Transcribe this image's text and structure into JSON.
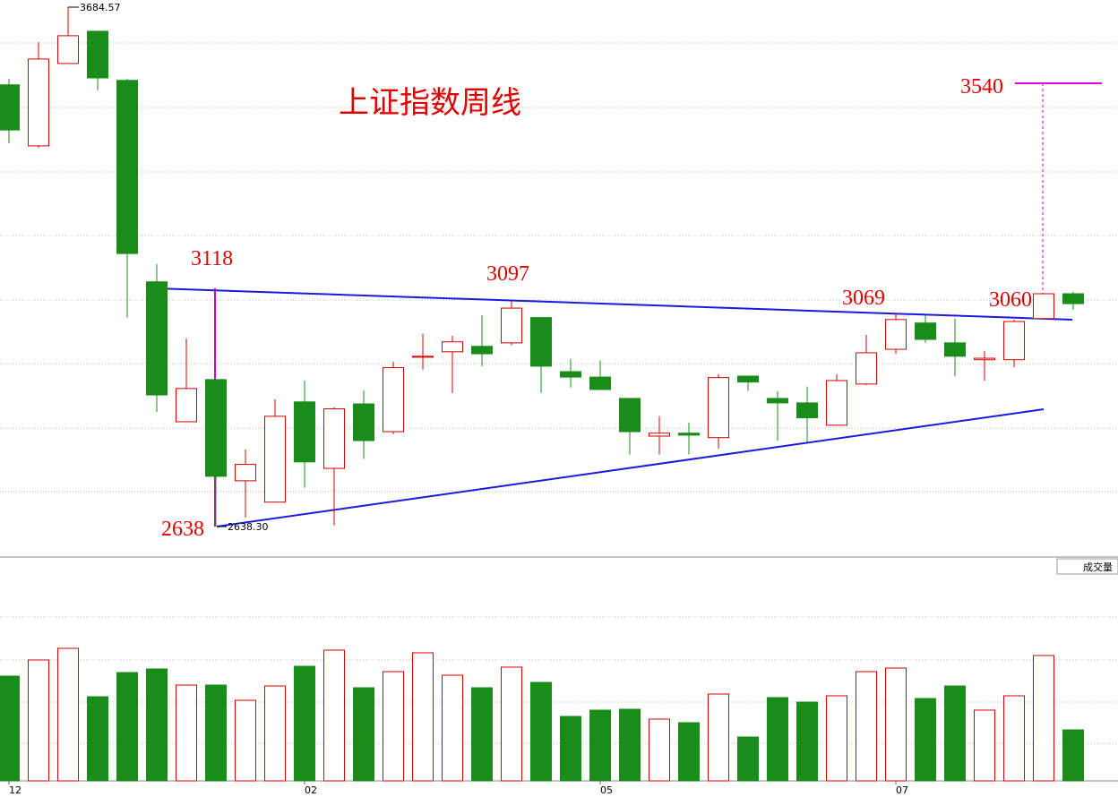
{
  "chart_data": {
    "type": "candlestick",
    "title": "上证指数周线",
    "categories": [
      "12",
      null,
      null,
      null,
      null,
      null,
      null,
      null,
      null,
      null,
      "02",
      null,
      null,
      null,
      null,
      null,
      null,
      null,
      null,
      null,
      "05",
      null,
      null,
      null,
      null,
      null,
      null,
      null,
      null,
      null,
      "07",
      null,
      null,
      null,
      null,
      null,
      null
    ],
    "open": [
      3528,
      3405,
      3571,
      3636,
      3537,
      3131,
      2849,
      2934,
      2730,
      2687,
      2889,
      2755,
      2885,
      2829,
      2979,
      2990,
      3001,
      3008,
      3059,
      2950,
      2939,
      2896,
      2820,
      2826,
      2817,
      2941,
      2896,
      2887,
      2842,
      2925,
      2995,
      3048,
      3008,
      2974,
      2974,
      3057,
      3107
    ],
    "high": [
      3540,
      3614,
      3684.57,
      3636,
      3540,
      3167,
      3017,
      2934,
      2793,
      2894,
      2932,
      2878,
      2912,
      2970,
      3026,
      3022,
      3064,
      3093,
      3059,
      2976,
      2972,
      2896,
      2860,
      2847,
      2945,
      2941,
      2911,
      2920,
      2945,
      3024,
      3068,
      3064,
      3057,
      2992,
      3055,
      3107,
      3111
    ],
    "low": [
      3410,
      3401,
      3571,
      3517,
      3059,
      2869,
      2849,
      2638.3,
      2656,
      2687,
      2716,
      2640,
      2774,
      2824,
      2954,
      2907,
      2961,
      3003,
      2907,
      2918,
      2914,
      2783,
      2783,
      2783,
      2795,
      2911,
      2811,
      2808,
      2842,
      2923,
      2986,
      3008,
      2941,
      2932,
      2959,
      3057,
      3075
    ],
    "close": [
      3437,
      3580,
      3627,
      3542,
      3188,
      2903,
      2916,
      2739,
      2763,
      2860,
      2768,
      2875,
      2811,
      2958,
      2981,
      3010,
      2986,
      3078,
      2961,
      2939,
      2914,
      2829,
      2826,
      2822,
      2938,
      2929,
      2887,
      2857,
      2932,
      2988,
      3055,
      3015,
      2981,
      2977,
      3051,
      3107,
      3087
    ],
    "volume": [
      117,
      135,
      148,
      94,
      121,
      125,
      107,
      107,
      90,
      106,
      128,
      146,
      104,
      122,
      143,
      118,
      104,
      127,
      110,
      72,
      79,
      80,
      69,
      65,
      97,
      49,
      93,
      88,
      95,
      122,
      126,
      92,
      106,
      79,
      95,
      140,
      57
    ],
    "up_color": "#d40000",
    "down_color": "#1a8c1a",
    "ylim": [
      2580,
      3699
    ],
    "y2lim": [
      0,
      240
    ],
    "volume_label": "成交量",
    "max_label": "3684.57",
    "min_label": "2638.30",
    "annotations": [
      "3118",
      "2638",
      "3097",
      "3069",
      "3060",
      "3540"
    ]
  }
}
